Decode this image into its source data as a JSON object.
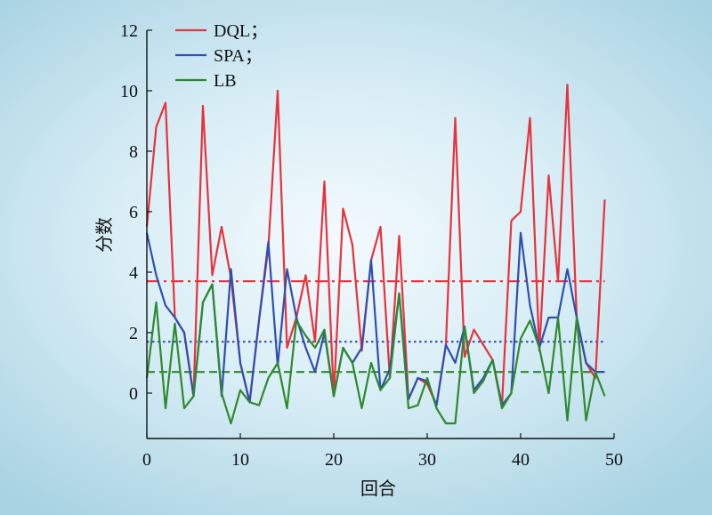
{
  "chart_data": {
    "type": "line",
    "xlabel": "回合",
    "ylabel": "分数",
    "xlim": [
      0,
      50
    ],
    "ylim": [
      -1.5,
      12
    ],
    "x_ticks": [
      0,
      10,
      20,
      30,
      40,
      50
    ],
    "y_ticks": [
      0,
      2,
      4,
      6,
      8,
      10,
      12
    ],
    "grid": false,
    "legend_position": "top-left",
    "x": [
      0,
      1,
      2,
      3,
      4,
      5,
      6,
      7,
      8,
      9,
      10,
      11,
      12,
      13,
      14,
      15,
      16,
      17,
      18,
      19,
      20,
      21,
      22,
      23,
      24,
      25,
      26,
      27,
      28,
      29,
      30,
      31,
      32,
      33,
      34,
      35,
      36,
      37,
      38,
      39,
      40,
      41,
      42,
      43,
      44,
      45,
      46,
      47,
      48,
      49
    ],
    "series": [
      {
        "name": "DQL；",
        "color": "#e8323c",
        "values": [
          5.5,
          8.8,
          9.6,
          2.5,
          2.0,
          -0.1,
          9.5,
          3.9,
          5.5,
          3.8,
          1.0,
          -0.3,
          2.4,
          4.8,
          10.0,
          1.5,
          2.5,
          3.9,
          1.7,
          7.0,
          -0.1,
          6.1,
          4.9,
          1.4,
          4.4,
          5.5,
          0.5,
          5.2,
          -0.2,
          0.5,
          0.3,
          -0.4,
          1.6,
          9.1,
          1.2,
          2.1,
          1.6,
          1.1,
          -0.4,
          5.7,
          6.0,
          9.1,
          1.4,
          7.2,
          3.7,
          10.2,
          2.5,
          1.0,
          0.5,
          6.4
        ]
      },
      {
        "name": "SPA；",
        "color": "#2f4fb0",
        "values": [
          5.3,
          3.9,
          2.9,
          2.5,
          2.0,
          -0.1,
          3.0,
          3.6,
          -0.1,
          4.1,
          1.0,
          -0.3,
          2.4,
          5.0,
          0.9,
          4.1,
          2.5,
          1.5,
          0.7,
          2.0,
          -0.1,
          1.5,
          1.0,
          1.5,
          4.4,
          0.1,
          0.8,
          3.3,
          -0.2,
          0.5,
          0.4,
          -0.4,
          1.6,
          1.0,
          2.2,
          0.1,
          0.5,
          1.1,
          -0.4,
          0.0,
          5.3,
          2.9,
          1.5,
          2.5,
          2.5,
          4.1,
          2.5,
          1.0,
          0.7,
          0.7
        ]
      },
      {
        "name": "LB",
        "color": "#2e8a2e",
        "values": [
          0.5,
          3.0,
          -0.5,
          2.3,
          -0.5,
          -0.1,
          3.0,
          3.6,
          0.0,
          -1.0,
          0.1,
          -0.3,
          -0.4,
          0.5,
          1.0,
          -0.5,
          2.4,
          1.9,
          1.5,
          2.1,
          -0.1,
          1.5,
          1.0,
          -0.5,
          1.0,
          0.1,
          0.5,
          3.3,
          -0.5,
          -0.4,
          0.5,
          -0.5,
          -1.0,
          -1.0,
          2.2,
          0.0,
          0.4,
          1.1,
          -0.5,
          0.0,
          1.8,
          2.4,
          1.5,
          0.0,
          2.5,
          -0.9,
          2.5,
          -0.9,
          0.7,
          -0.1
        ]
      }
    ],
    "mean_lines": [
      {
        "series": "DQL；",
        "value": 3.7,
        "color": "#e8323c",
        "style": "dashdot"
      },
      {
        "series": "SPA；",
        "value": 1.7,
        "color": "#2f4fb0",
        "style": "dotted"
      },
      {
        "series": "LB",
        "value": 0.7,
        "color": "#2e8a2e",
        "style": "dashed"
      }
    ]
  }
}
